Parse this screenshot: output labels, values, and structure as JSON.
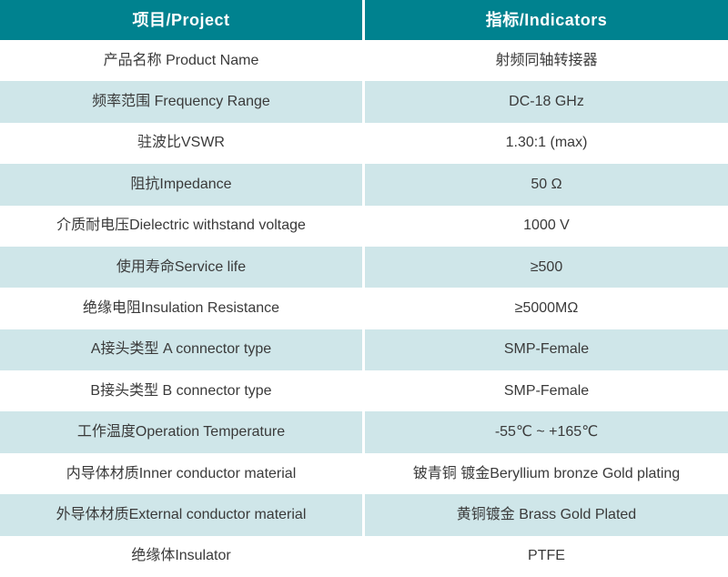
{
  "colors": {
    "header_bg": "#00828f",
    "header_text": "#ffffff",
    "alt_row_bg": "#cfe6e9",
    "row_bg": "#ffffff",
    "cell_text": "#3a3a3a",
    "divider": "#ffffff"
  },
  "table": {
    "headers": {
      "project": "项目/Project",
      "indicators": "指标/Indicators"
    },
    "rows": [
      {
        "project": "产品名称 Product Name",
        "indicator": "射频同轴转接器"
      },
      {
        "project": "频率范围 Frequency Range",
        "indicator": "DC-18 GHz"
      },
      {
        "project": "驻波比VSWR",
        "indicator": "1.30:1 (max)"
      },
      {
        "project": "阻抗Impedance",
        "indicator": "50 Ω"
      },
      {
        "project": "介质耐电压Dielectric withstand voltage",
        "indicator": "1000 V"
      },
      {
        "project": "使用寿命Service life",
        "indicator": "≥500"
      },
      {
        "project": "绝缘电阻Insulation Resistance",
        "indicator": "≥5000MΩ"
      },
      {
        "project": "A接头类型 A connector type",
        "indicator": "SMP-Female"
      },
      {
        "project": "B接头类型 B connector type",
        "indicator": "SMP-Female"
      },
      {
        "project": "工作温度Operation Temperature",
        "indicator": "-55℃ ~ +165℃"
      },
      {
        "project": "内导体材质Inner conductor material",
        "indicator": "铍青铜 镀金Beryllium bronze Gold plating"
      },
      {
        "project": "外导体材质External conductor material",
        "indicator": "黄铜镀金 Brass Gold Plated"
      },
      {
        "project": "绝缘体Insulator",
        "indicator": "PTFE"
      }
    ]
  }
}
